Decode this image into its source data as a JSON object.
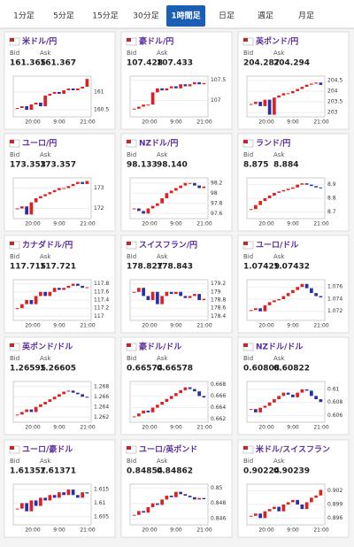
{
  "tabs": [
    "1分足",
    "5分足",
    "15分足",
    "30分足",
    "1時間足",
    "日足",
    "週足",
    "月足"
  ],
  "active_tab": 4,
  "bid_label": "Bid",
  "ask_label": "Ask",
  "time_labels": [
    "20:00",
    "9:00",
    "21:00"
  ],
  "up_color": "#e02020",
  "down_color": "#2830a8",
  "cards": [
    {
      "name": "米ドル/円",
      "bid": "161.365",
      "ask": "161.367",
      "ylim": [
        160.3,
        161.45
      ],
      "yticks": [
        160.5,
        161
      ],
      "closes": [
        160.55,
        160.6,
        160.5,
        160.65,
        160.7,
        160.6,
        160.9,
        160.95,
        161.0,
        160.95,
        161.05,
        161.1,
        161.05,
        161.1,
        161.15,
        161.37
      ]
    },
    {
      "name": "豪ドル/円",
      "bid": "107.428",
      "ask": "107.433",
      "ylim": [
        106.6,
        107.6
      ],
      "yticks": [
        107,
        107.5
      ],
      "closes": [
        106.8,
        106.85,
        106.9,
        106.9,
        107.2,
        107.3,
        107.25,
        107.3,
        107.35,
        107.3,
        107.4,
        107.35,
        107.4,
        107.45,
        107.4,
        107.43
      ]
    },
    {
      "name": "英ポンド/円",
      "bid": "204.287",
      "ask": "204.294",
      "ylim": [
        202.8,
        204.7
      ],
      "yticks": [
        203,
        203.5,
        204,
        204.5
      ],
      "closes": [
        203.4,
        203.5,
        203.3,
        203.6,
        202.9,
        203.7,
        203.8,
        203.9,
        203.9,
        204.0,
        204.1,
        204.2,
        204.3,
        204.35,
        204.4,
        204.29
      ]
    },
    {
      "name": "ユーロ/円",
      "bid": "173.353",
      "ask": "173.357",
      "ylim": [
        171.5,
        173.5
      ],
      "yticks": [
        172,
        173
      ],
      "closes": [
        172.0,
        172.1,
        171.7,
        172.3,
        172.5,
        172.6,
        172.7,
        172.8,
        172.9,
        173.0,
        173.0,
        173.1,
        173.2,
        173.3,
        173.2,
        173.35
      ]
    },
    {
      "name": "NZドル/円",
      "bid": "98.133",
      "ask": "98.140",
      "ylim": [
        97.5,
        98.3
      ],
      "yticks": [
        97.6,
        97.8,
        98,
        98.2
      ],
      "closes": [
        97.7,
        97.65,
        97.6,
        97.7,
        97.75,
        97.8,
        97.9,
        98.0,
        98.05,
        98.1,
        98.15,
        98.2,
        98.2,
        98.15,
        98.1,
        98.13
      ]
    },
    {
      "name": "ランド/円",
      "bid": "8.875",
      "ask": "8.884",
      "ylim": [
        8.65,
        8.95
      ],
      "yticks": [
        8.7,
        8.8,
        8.9
      ],
      "closes": [
        8.72,
        8.75,
        8.78,
        8.8,
        8.82,
        8.84,
        8.85,
        8.86,
        8.87,
        8.88,
        8.9,
        8.91,
        8.9,
        8.89,
        8.88,
        8.875
      ]
    },
    {
      "name": "カナダドル/円",
      "bid": "117.715",
      "ask": "117.721",
      "ylim": [
        116.9,
        117.9
      ],
      "yticks": [
        117,
        117.2,
        117.4,
        117.6,
        117.8
      ],
      "closes": [
        117.2,
        117.3,
        117.4,
        117.3,
        117.5,
        117.6,
        117.5,
        117.6,
        117.7,
        117.65,
        117.7,
        117.75,
        117.8,
        117.75,
        117.7,
        117.715
      ]
    },
    {
      "name": "スイスフラン/円",
      "bid": "178.827",
      "ask": "178.843",
      "ylim": [
        178.3,
        179.3
      ],
      "yticks": [
        178.4,
        178.6,
        178.8,
        179,
        179.2
      ],
      "closes": [
        179.0,
        179.1,
        178.9,
        178.8,
        179.0,
        178.7,
        178.9,
        179.0,
        178.95,
        179.0,
        178.9,
        178.85,
        178.9,
        178.95,
        178.8,
        178.83
      ]
    },
    {
      "name": "ユーロ/ドル",
      "bid": "1.07429",
      "ask": "1.07432",
      "ylim": [
        1.0705,
        1.0772
      ],
      "yticks": [
        1.072,
        1.074,
        1.076
      ],
      "closes": [
        1.0722,
        1.0725,
        1.072,
        1.073,
        1.0735,
        1.0738,
        1.074,
        1.0745,
        1.075,
        1.0755,
        1.076,
        1.0765,
        1.0758,
        1.075,
        1.0745,
        1.07429
      ]
    },
    {
      "name": "英ポンド/ドル",
      "bid": "1.26595",
      "ask": "1.26605",
      "ylim": [
        1.261,
        1.269
      ],
      "yticks": [
        1.262,
        1.264,
        1.266,
        1.268
      ],
      "closes": [
        1.2625,
        1.263,
        1.2635,
        1.263,
        1.264,
        1.2645,
        1.265,
        1.2655,
        1.266,
        1.2665,
        1.267,
        1.2672,
        1.2668,
        1.2665,
        1.266,
        1.26595
      ]
    },
    {
      "name": "豪ドル/ドル",
      "bid": "0.66574",
      "ask": "0.66578",
      "ylim": [
        0.6615,
        0.6685
      ],
      "yticks": [
        0.662,
        0.664,
        0.666,
        0.668
      ],
      "closes": [
        0.6625,
        0.663,
        0.6635,
        0.6632,
        0.664,
        0.6645,
        0.665,
        0.6655,
        0.666,
        0.6665,
        0.667,
        0.6675,
        0.6672,
        0.6668,
        0.666,
        0.66574
      ]
    },
    {
      "name": "NZドル/ドル",
      "bid": "0.60808",
      "ask": "0.60822",
      "ylim": [
        0.605,
        0.6112
      ],
      "yticks": [
        0.606,
        0.608,
        0.61
      ],
      "closes": [
        0.607,
        0.6065,
        0.6072,
        0.6075,
        0.608,
        0.6085,
        0.609,
        0.6095,
        0.6092,
        0.6088,
        0.6095,
        0.61,
        0.6098,
        0.609,
        0.6085,
        0.60808
      ]
    },
    {
      "name": "ユーロ/豪ドル",
      "bid": "1.61357",
      "ask": "1.61371",
      "ylim": [
        1.602,
        1.617
      ],
      "yticks": [
        1.605,
        1.61,
        1.615
      ],
      "closes": [
        1.608,
        1.61,
        1.607,
        1.611,
        1.609,
        1.612,
        1.611,
        1.613,
        1.612,
        1.614,
        1.613,
        1.615,
        1.613,
        1.612,
        1.614,
        1.61357
      ]
    },
    {
      "name": "ユーロ/英ポンド",
      "bid": "0.84854",
      "ask": "0.84862",
      "ylim": [
        0.8452,
        0.8505
      ],
      "yticks": [
        0.846,
        0.848,
        0.85
      ],
      "closes": [
        0.8465,
        0.847,
        0.8468,
        0.8475,
        0.848,
        0.8478,
        0.8485,
        0.849,
        0.8488,
        0.8495,
        0.8492,
        0.849,
        0.8488,
        0.8485,
        0.8487,
        0.84854
      ]
    },
    {
      "name": "米ドル/スイスフラン",
      "bid": "0.90224",
      "ask": "0.90239",
      "ylim": [
        0.8945,
        0.9035
      ],
      "yticks": [
        0.896,
        0.899,
        0.902
      ],
      "closes": [
        0.8965,
        0.897,
        0.896,
        0.8975,
        0.898,
        0.8985,
        0.8975,
        0.899,
        0.8995,
        0.9,
        0.899,
        0.898,
        0.8995,
        0.9005,
        0.901,
        0.90224
      ]
    }
  ]
}
